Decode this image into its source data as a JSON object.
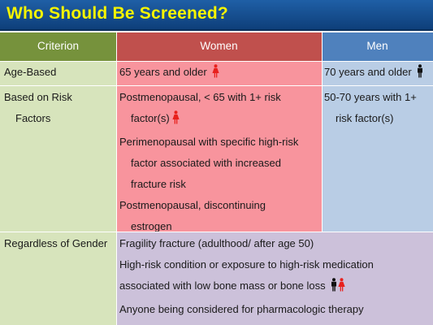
{
  "title": "Who Should Be Screened?",
  "headers": {
    "criterion": "Criterion",
    "women": "Women",
    "men": "Men"
  },
  "rows": {
    "age": {
      "criterion": "Age-Based",
      "women": "65 years and older",
      "men": "70 years and older"
    },
    "risk": {
      "criterion_line1": "Based on Risk",
      "criterion_line2": "Factors",
      "women": [
        {
          "line1": "Postmenopausal, < 65 with 1+ risk",
          "line2": "factor(s)"
        },
        {
          "line1": "Perimenopausal with specific high-risk",
          "line2": "factor associated with increased",
          "line3": "fracture risk"
        },
        {
          "line1": "Postmenopausal, discontinuing",
          "line2": "estrogen"
        }
      ],
      "men": {
        "line1": "50-70 years with 1+",
        "line2": "risk factor(s)"
      }
    },
    "gender": {
      "criterion": "Regardless of Gender",
      "items": [
        "Fragility fracture (adulthood/ after age 50)",
        "High-risk condition or exposure to high-risk medication",
        "associated with low bone mass or bone loss",
        "Anyone being considered for pharmacologic therapy"
      ]
    }
  },
  "icons": {
    "female": "female-figure-icon",
    "male": "male-figure-icon",
    "female_color": "#e8201c",
    "male_color": "#111111"
  },
  "colors": {
    "title_bar": "#1f5fa6",
    "title_text": "#f6f400",
    "criterion_header": "#76923c",
    "women_header": "#c0504d",
    "men_header": "#4f81bd",
    "criterion_body": "#d7e4bc",
    "women_body": "#f8949d",
    "men_body": "#b9cde5",
    "gender_body": "#ccc1da"
  }
}
